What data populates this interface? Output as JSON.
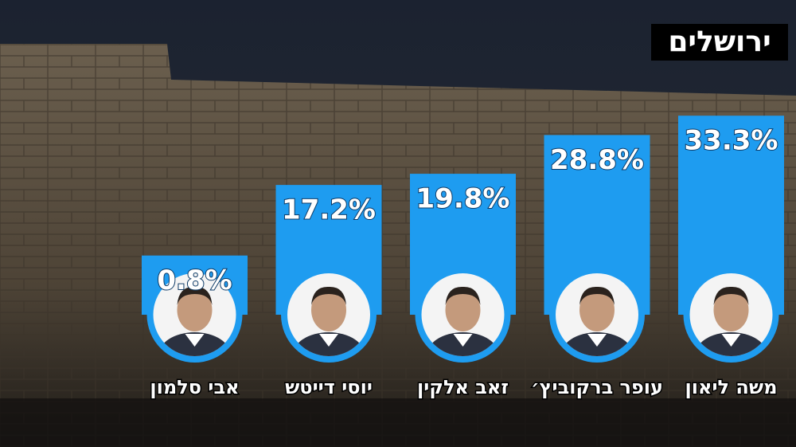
{
  "chart_data": {
    "type": "bar",
    "title": "ירושלים",
    "categories": [
      "אבי סלמון",
      "יוסי דייטש",
      "זאב אלקין",
      "עופר ברקוביץ׳",
      "משה ליאון"
    ],
    "values": [
      0.8,
      17.2,
      19.8,
      28.8,
      33.3
    ],
    "value_labels": [
      "0.8%",
      "17.2%",
      "19.8%",
      "28.8%",
      "33.3%"
    ],
    "color": "#1e9cf0"
  }
}
